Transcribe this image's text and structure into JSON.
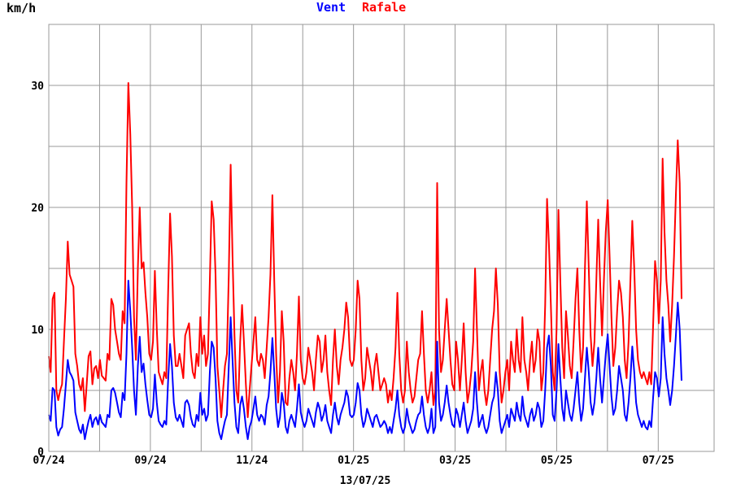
{
  "chart_data": {
    "type": "line",
    "unit_label": "km/h",
    "footer_date": "13/07/25",
    "y_ticks": [
      "0",
      "10",
      "20",
      "30"
    ],
    "ylim": [
      0,
      35
    ],
    "grid": true,
    "x_ticks": [
      "07/24",
      "09/24",
      "11/24",
      "01/25",
      "03/25",
      "05/25",
      "07/25"
    ],
    "colors": {
      "vent": "#0000ff",
      "rafale": "#ff0000",
      "grid": "#999999"
    },
    "series": [
      {
        "name": "Vent",
        "color": "#0000ff",
        "values": [
          3.0,
          2.5,
          5.2,
          5.0,
          2.0,
          1.3,
          1.8,
          2.0,
          3.5,
          5.5,
          7.5,
          6.5,
          6.2,
          5.8,
          3.2,
          2.5,
          1.8,
          1.5,
          2.2,
          1.0,
          1.8,
          2.5,
          3.0,
          2.0,
          2.6,
          2.8,
          2.2,
          3.0,
          2.4,
          2.2,
          2.0,
          3.0,
          2.8,
          5.0,
          5.2,
          4.8,
          4.0,
          3.2,
          2.8,
          4.8,
          4.2,
          8.0,
          14.0,
          11.5,
          8.5,
          5.0,
          3.0,
          7.0,
          9.4,
          6.5,
          7.2,
          5.5,
          4.2,
          3.0,
          2.8,
          3.5,
          6.3,
          4.0,
          2.5,
          2.2,
          2.0,
          2.5,
          2.2,
          5.8,
          8.8,
          7.0,
          4.0,
          2.8,
          2.5,
          3.0,
          2.5,
          2.0,
          4.0,
          4.2,
          3.8,
          2.8,
          2.2,
          2.0,
          3.0,
          2.5,
          4.8,
          3.0,
          3.5,
          2.5,
          3.0,
          6.5,
          9.0,
          8.5,
          6.0,
          2.5,
          1.5,
          1.0,
          1.8,
          2.5,
          3.0,
          7.0,
          11.0,
          7.5,
          4.0,
          2.0,
          1.5,
          3.8,
          4.5,
          3.5,
          2.0,
          1.0,
          2.0,
          2.5,
          3.5,
          4.5,
          3.0,
          2.5,
          3.0,
          2.8,
          2.2,
          3.8,
          4.5,
          6.5,
          9.3,
          6.5,
          3.5,
          2.0,
          2.8,
          4.8,
          4.0,
          2.0,
          1.5,
          2.5,
          3.0,
          2.5,
          2.0,
          3.5,
          5.5,
          3.2,
          2.5,
          2.0,
          2.5,
          3.5,
          3.0,
          2.5,
          2.0,
          3.2,
          4.0,
          3.5,
          2.5,
          3.0,
          3.8,
          2.5,
          2.0,
          1.5,
          3.0,
          4.0,
          2.8,
          2.2,
          3.0,
          3.5,
          4.0,
          5.0,
          4.5,
          3.0,
          2.8,
          3.0,
          4.0,
          5.6,
          5.0,
          3.0,
          2.0,
          2.5,
          3.5,
          3.0,
          2.5,
          2.0,
          2.8,
          3.0,
          2.5,
          2.0,
          2.2,
          2.5,
          2.2,
          1.5,
          2.0,
          1.5,
          2.5,
          3.5,
          5.0,
          3.0,
          2.0,
          1.5,
          2.0,
          3.5,
          2.5,
          2.0,
          1.5,
          1.8,
          2.5,
          3.0,
          3.2,
          4.5,
          3.0,
          2.0,
          1.5,
          2.0,
          3.5,
          1.5,
          2.0,
          9.0,
          4.0,
          2.5,
          3.0,
          4.0,
          5.4,
          4.0,
          3.0,
          2.2,
          2.0,
          3.5,
          3.0,
          2.0,
          3.0,
          4.0,
          2.5,
          1.5,
          2.0,
          2.5,
          3.5,
          6.5,
          4.0,
          2.0,
          2.5,
          3.0,
          2.0,
          1.5,
          2.0,
          3.0,
          4.0,
          4.5,
          6.5,
          5.0,
          2.5,
          1.5,
          2.0,
          2.5,
          3.0,
          2.0,
          3.5,
          3.0,
          2.5,
          4.0,
          3.0,
          2.5,
          4.5,
          3.0,
          2.5,
          2.0,
          3.0,
          3.5,
          2.5,
          3.0,
          4.0,
          3.5,
          2.0,
          2.5,
          5.0,
          8.5,
          9.5,
          7.0,
          3.0,
          2.5,
          5.0,
          8.8,
          6.0,
          3.5,
          2.5,
          5.0,
          4.0,
          3.0,
          2.5,
          3.5,
          5.0,
          6.5,
          4.0,
          2.5,
          3.5,
          6.0,
          8.5,
          6.5,
          4.0,
          3.0,
          4.0,
          6.0,
          8.5,
          6.0,
          4.0,
          6.0,
          8.0,
          9.6,
          7.0,
          4.5,
          3.0,
          3.5,
          5.0,
          7.0,
          6.0,
          5.0,
          3.0,
          2.5,
          4.0,
          6.0,
          8.6,
          6.5,
          4.0,
          3.0,
          2.5,
          2.0,
          2.5,
          2.0,
          1.8,
          2.5,
          2.0,
          4.5,
          6.5,
          6.0,
          4.5,
          6.0,
          11.0,
          8.0,
          6.0,
          5.0,
          3.8,
          5.0,
          7.0,
          9.5,
          12.2,
          10.0,
          5.8
        ]
      },
      {
        "name": "Rafale",
        "color": "#ff0000",
        "values": [
          7.8,
          6.5,
          12.5,
          13.0,
          5.0,
          4.2,
          5.0,
          5.5,
          9.0,
          12.5,
          17.2,
          14.5,
          14.0,
          13.5,
          8.0,
          7.0,
          5.5,
          5.0,
          6.0,
          3.3,
          5.5,
          7.8,
          8.2,
          5.5,
          6.8,
          7.0,
          6.0,
          7.5,
          6.2,
          6.0,
          5.8,
          8.0,
          7.5,
          12.5,
          12.0,
          10.0,
          9.0,
          8.0,
          7.5,
          11.5,
          10.5,
          22.0,
          30.2,
          26.0,
          20.0,
          11.0,
          7.5,
          15.0,
          20.0,
          15.0,
          15.5,
          13.0,
          11.0,
          8.0,
          7.5,
          9.0,
          14.8,
          10.0,
          6.5,
          6.0,
          5.5,
          6.5,
          6.0,
          13.0,
          19.5,
          16.0,
          9.5,
          7.0,
          7.0,
          8.0,
          7.0,
          6.0,
          9.5,
          10.0,
          10.5,
          8.0,
          6.5,
          6.0,
          8.0,
          7.0,
          11.0,
          8.0,
          9.5,
          7.0,
          8.0,
          14.0,
          20.5,
          19.0,
          14.5,
          7.0,
          5.0,
          2.8,
          5.0,
          7.0,
          8.0,
          14.5,
          23.5,
          16.0,
          9.5,
          5.0,
          4.0,
          9.0,
          12.0,
          9.0,
          5.5,
          2.8,
          5.0,
          7.0,
          9.0,
          11.0,
          7.5,
          7.0,
          8.0,
          7.5,
          6.0,
          8.5,
          11.0,
          14.5,
          21.0,
          14.0,
          8.0,
          4.0,
          6.5,
          11.5,
          9.0,
          4.0,
          3.8,
          6.0,
          7.5,
          6.5,
          5.0,
          8.0,
          12.7,
          7.5,
          6.0,
          5.5,
          6.5,
          8.5,
          7.5,
          6.5,
          5.0,
          7.5,
          9.5,
          9.0,
          6.5,
          7.5,
          9.5,
          6.5,
          5.0,
          3.8,
          7.5,
          10.0,
          7.0,
          5.5,
          7.5,
          8.5,
          10.0,
          12.2,
          11.0,
          7.5,
          7.0,
          7.5,
          10.0,
          14.0,
          12.5,
          7.5,
          5.0,
          6.0,
          8.5,
          7.5,
          6.5,
          5.0,
          7.0,
          8.0,
          6.5,
          5.0,
          5.5,
          6.0,
          5.5,
          4.0,
          5.0,
          4.2,
          6.0,
          8.5,
          13.0,
          8.0,
          5.0,
          4.0,
          5.0,
          9.0,
          6.5,
          5.0,
          4.0,
          4.5,
          6.0,
          7.5,
          8.0,
          11.5,
          8.0,
          5.0,
          4.0,
          5.0,
          6.5,
          3.8,
          5.0,
          22.0,
          10.0,
          6.5,
          7.5,
          10.0,
          12.5,
          10.0,
          7.5,
          5.5,
          5.0,
          9.0,
          7.5,
          5.0,
          7.5,
          10.5,
          6.5,
          4.0,
          5.0,
          6.5,
          9.0,
          15.0,
          10.0,
          5.0,
          6.5,
          7.5,
          5.0,
          3.8,
          5.0,
          7.5,
          10.0,
          11.5,
          15.0,
          12.0,
          6.5,
          4.0,
          5.0,
          6.5,
          7.5,
          5.0,
          9.0,
          7.5,
          6.5,
          10.0,
          7.5,
          6.5,
          11.0,
          7.5,
          6.5,
          5.0,
          7.5,
          9.0,
          6.5,
          7.5,
          10.0,
          9.0,
          5.0,
          6.5,
          12.0,
          20.7,
          17.0,
          12.0,
          6.5,
          5.0,
          10.0,
          19.8,
          14.0,
          8.5,
          6.0,
          11.5,
          9.5,
          7.0,
          6.0,
          9.0,
          12.5,
          15.0,
          10.0,
          6.5,
          8.5,
          15.0,
          20.5,
          15.0,
          9.5,
          7.0,
          9.0,
          14.0,
          19.0,
          14.0,
          9.5,
          14.0,
          18.0,
          20.6,
          16.0,
          11.0,
          7.0,
          8.5,
          11.5,
          14.0,
          13.0,
          11.0,
          7.5,
          6.0,
          9.0,
          14.0,
          18.9,
          15.0,
          10.0,
          7.5,
          6.5,
          6.0,
          6.5,
          6.0,
          5.5,
          6.5,
          5.5,
          10.5,
          15.6,
          14.0,
          10.5,
          14.0,
          24.0,
          18.0,
          14.0,
          12.0,
          9.0,
          12.0,
          16.0,
          21.0,
          25.5,
          22.0,
          12.5
        ]
      }
    ]
  }
}
